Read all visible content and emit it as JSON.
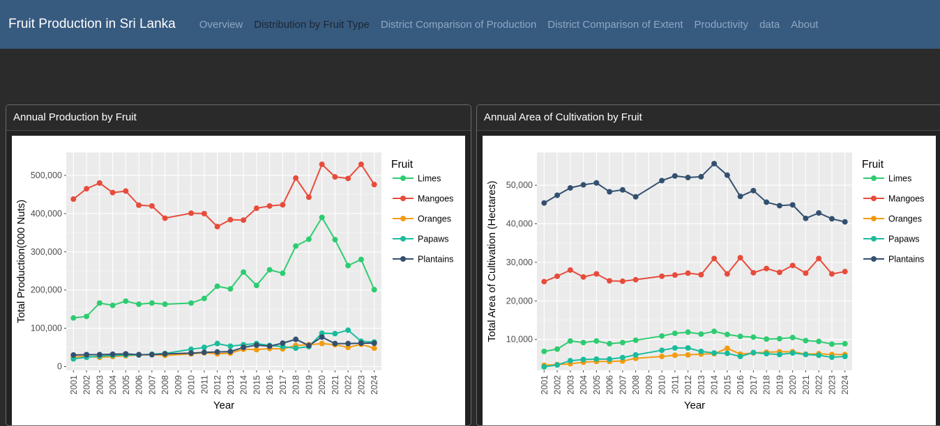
{
  "app": {
    "title": "Fruit Production in Sri Lanka",
    "nav": [
      {
        "label": "Overview",
        "active": false
      },
      {
        "label": "Distribution by Fruit Type",
        "active": true
      },
      {
        "label": "District Comparison of Production",
        "active": false
      },
      {
        "label": "District Comparison of Extent",
        "active": false
      },
      {
        "label": "Productivity",
        "active": false
      },
      {
        "label": "data",
        "active": false
      },
      {
        "label": "About",
        "active": false
      }
    ]
  },
  "colors": {
    "Limes": "#2ecc71",
    "Mangoes": "#e74c3c",
    "Oranges": "#f39c12",
    "Papaws": "#1abc9c",
    "Plantains": "#34506f"
  },
  "chart_data": [
    {
      "card_title": "Annual Production by Fruit",
      "type": "line",
      "xlabel": "Year",
      "ylabel": "Total Production(000 Nuts)",
      "legend_title": "Fruit",
      "legend_position": "right",
      "grid": true,
      "ylim": [
        -10000,
        560000
      ],
      "yticks": [
        0,
        100000,
        200000,
        300000,
        400000,
        500000
      ],
      "ytick_labels": [
        "0",
        "100,000",
        "200,000",
        "300,000",
        "400,000",
        "500,000"
      ],
      "x": [
        2001,
        2002,
        2003,
        2004,
        2005,
        2006,
        2007,
        2008,
        2010,
        2011,
        2012,
        2013,
        2014,
        2015,
        2016,
        2017,
        2018,
        2019,
        2020,
        2021,
        2022,
        2023,
        2024
      ],
      "xticks": [
        "2001",
        "2002",
        "2003",
        "2004",
        "2005",
        "2006",
        "2007",
        "2008",
        "2009",
        "2010",
        "2011",
        "2012",
        "2013",
        "2014",
        "2015",
        "2016",
        "2017",
        "2018",
        "2019",
        "2020",
        "2021",
        "2022",
        "2023",
        "2024"
      ],
      "series": [
        {
          "name": "Limes",
          "values": [
            127000,
            131000,
            166000,
            160000,
            171000,
            163000,
            166000,
            163000,
            166000,
            178000,
            210000,
            203000,
            247000,
            212000,
            253000,
            244000,
            315000,
            333000,
            390000,
            332000,
            264000,
            280000,
            201000
          ]
        },
        {
          "name": "Mangoes",
          "values": [
            438000,
            465000,
            480000,
            455000,
            459000,
            422000,
            420000,
            388000,
            401000,
            400000,
            366000,
            384000,
            383000,
            414000,
            420000,
            423000,
            493000,
            443000,
            529000,
            496000,
            492000,
            529000,
            476000
          ]
        },
        {
          "name": "Oranges",
          "values": [
            25000,
            27000,
            24000,
            26000,
            28000,
            30000,
            31000,
            29000,
            33000,
            36000,
            33000,
            35000,
            45000,
            44000,
            47000,
            46000,
            55000,
            57000,
            60000,
            57000,
            50000,
            58000,
            48000
          ]
        },
        {
          "name": "Papaws",
          "values": [
            20000,
            24000,
            27000,
            29000,
            30000,
            30000,
            32000,
            34000,
            45000,
            50000,
            60000,
            53000,
            57000,
            60000,
            55000,
            52000,
            48000,
            52000,
            87000,
            86000,
            95000,
            66000,
            64000
          ]
        },
        {
          "name": "Plantains",
          "values": [
            30000,
            31000,
            31000,
            32000,
            33000,
            31000,
            31000,
            33000,
            35000,
            37000,
            38000,
            39000,
            50000,
            56000,
            53000,
            61000,
            71000,
            55000,
            77000,
            60000,
            60000,
            61000,
            61000
          ]
        }
      ]
    },
    {
      "card_title": "Annual Area of Cultivation by Fruit",
      "type": "line",
      "xlabel": "Year",
      "ylabel": "Total Area of Cultivation (Hectares)",
      "legend_title": "Fruit",
      "legend_position": "right",
      "grid": true,
      "ylim": [
        2000,
        58500
      ],
      "yticks": [
        10000,
        20000,
        30000,
        40000,
        50000
      ],
      "ytick_labels": [
        "10,000",
        "20,000",
        "30,000",
        "40,000",
        "50,000"
      ],
      "x": [
        2001,
        2002,
        2003,
        2004,
        2005,
        2006,
        2007,
        2008,
        2010,
        2011,
        2012,
        2013,
        2014,
        2015,
        2016,
        2017,
        2018,
        2019,
        2020,
        2021,
        2022,
        2023,
        2024
      ],
      "xticks": [
        "2001",
        "2002",
        "2003",
        "2004",
        "2005",
        "2006",
        "2007",
        "2008",
        "2009",
        "2010",
        "2011",
        "2012",
        "2013",
        "2014",
        "2015",
        "2016",
        "2017",
        "2018",
        "2019",
        "2020",
        "2021",
        "2022",
        "2023",
        "2024"
      ],
      "series": [
        {
          "name": "Limes",
          "values": [
            6900,
            7500,
            9600,
            9200,
            9600,
            8900,
            9200,
            9800,
            10900,
            11600,
            11900,
            11400,
            12100,
            11300,
            10800,
            10600,
            10100,
            10200,
            10500,
            9700,
            9500,
            8800,
            8900
          ]
        },
        {
          "name": "Mangoes",
          "values": [
            25000,
            26400,
            28000,
            26200,
            27000,
            25200,
            25100,
            25500,
            26400,
            26700,
            27200,
            26800,
            31000,
            27000,
            31200,
            27300,
            28400,
            27400,
            29200,
            27200,
            31000,
            27000,
            27600
          ]
        },
        {
          "name": "Oranges",
          "values": [
            3300,
            3500,
            3700,
            4100,
            4300,
            4300,
            4400,
            5100,
            5600,
            5900,
            6000,
            6200,
            6300,
            7700,
            6200,
            6500,
            6700,
            6800,
            6800,
            6200,
            6300,
            6100,
            6100
          ]
        },
        {
          "name": "Papaws",
          "values": [
            2900,
            3400,
            4500,
            4800,
            4900,
            4900,
            5300,
            6000,
            7200,
            7800,
            7800,
            6900,
            6500,
            6400,
            5600,
            6600,
            6300,
            6100,
            6500,
            6100,
            5900,
            5400,
            5600
          ]
        },
        {
          "name": "Plantains",
          "values": [
            45400,
            47400,
            49300,
            50100,
            50600,
            48300,
            48800,
            47000,
            51200,
            52400,
            52000,
            52200,
            55600,
            52600,
            47100,
            48600,
            45600,
            44700,
            44900,
            41400,
            42800,
            41300,
            40500
          ]
        }
      ]
    }
  ]
}
